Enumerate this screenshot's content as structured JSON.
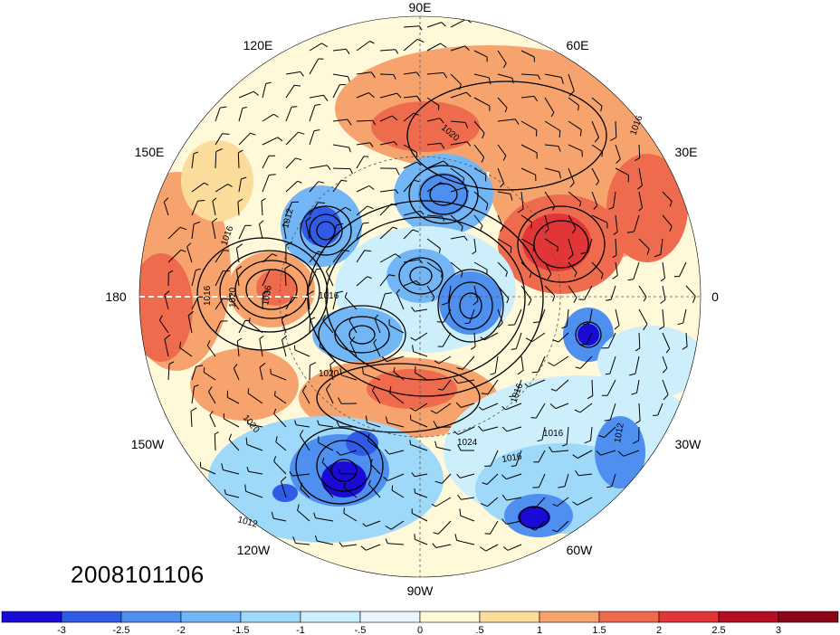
{
  "date_stamp": "2008101106",
  "longitude_labels": [
    "90E",
    "60E",
    "30E",
    "0",
    "30W",
    "60W",
    "90W",
    "120W",
    "150W",
    "180",
    "150E",
    "120E"
  ],
  "isobar_labels": [
    "1016",
    "1020",
    "1016",
    "1012",
    "1016",
    "1020",
    "1036",
    "1016",
    "1020",
    "1016",
    "1016",
    "1012",
    "1016",
    "1024",
    "1012",
    "1020"
  ],
  "colorbar": {
    "tick_labels": [
      "-3",
      "-2.5",
      "-2",
      "-1.5",
      "-1",
      "-.5",
      "0",
      ".5",
      "1",
      "1.5",
      "2",
      "2.5",
      "3"
    ],
    "colors": [
      "#1a0ad6",
      "#2f5be6",
      "#4f8ff0",
      "#73b6f6",
      "#9ed9f9",
      "#cdeffc",
      "#eaf8fe",
      "#fff8d9",
      "#fbdc9b",
      "#f6a36d",
      "#ef6b4e",
      "#e13537",
      "#b50d22",
      "#8c0418"
    ]
  },
  "legend_colors": {
    "strong_negative": "#1a0ad6",
    "negative": "#4f8ff0",
    "weak_negative": "#cdeffc",
    "weak_positive": "#fff8d9",
    "positive": "#f6a36d",
    "strong_positive": "#e13537"
  }
}
